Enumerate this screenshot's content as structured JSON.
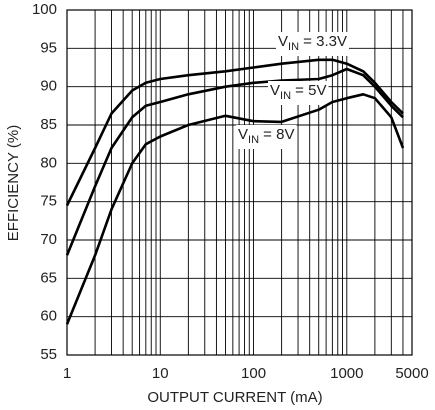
{
  "chart_data": {
    "type": "line",
    "xlabel": "OUTPUT CURRENT (mA)",
    "ylabel": "EFFICIENCY (%)",
    "xscale": "log",
    "grid": true,
    "color": "#000000",
    "xlim": [
      1,
      5000
    ],
    "ylim": [
      55,
      100
    ],
    "xticks": [
      1,
      10,
      100,
      1000,
      5000
    ],
    "xminor": [
      2,
      3,
      4,
      5,
      6,
      7,
      8,
      9,
      20,
      30,
      40,
      50,
      60,
      70,
      80,
      90,
      200,
      300,
      400,
      500,
      600,
      700,
      800,
      900,
      2000,
      3000,
      4000
    ],
    "yticks": [
      55,
      60,
      65,
      70,
      75,
      80,
      85,
      90,
      95,
      100
    ],
    "x": [
      1,
      2,
      3,
      5,
      7,
      10,
      20,
      50,
      100,
      200,
      500,
      700,
      1000,
      1500,
      2000,
      3000,
      4000
    ],
    "series": [
      {
        "label": [
          "V",
          "IN",
          " = 3.3V"
        ],
        "color": "#000000",
        "values": [
          74.5,
          82,
          86.5,
          89.5,
          90.5,
          91,
          91.5,
          92,
          92.5,
          93,
          93.5,
          93.5,
          93,
          92,
          90.5,
          88,
          86.5
        ]
      },
      {
        "label": [
          "V",
          "IN",
          " = 5V"
        ],
        "color": "#000000",
        "values": [
          68,
          77,
          82,
          86,
          87.5,
          88,
          89,
          90,
          90.5,
          90.8,
          91,
          91.5,
          92.3,
          91.5,
          90,
          87.5,
          86
        ]
      },
      {
        "label": [
          "V",
          "IN",
          " = 8V"
        ],
        "color": "#000000",
        "values": [
          59,
          68,
          74,
          80,
          82.5,
          83.5,
          85,
          86.2,
          85.5,
          85.4,
          87,
          88,
          88.5,
          89,
          88.5,
          86,
          82
        ]
      }
    ]
  }
}
